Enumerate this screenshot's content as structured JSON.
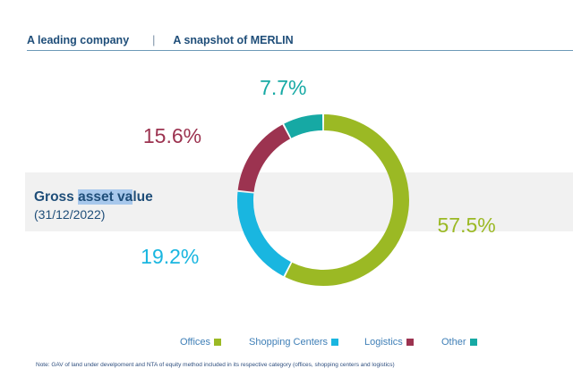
{
  "header": {
    "left": "A leading company",
    "separator": "|",
    "right": "A snapshot of MERLIN"
  },
  "gav": {
    "title_pre": "Gross ",
    "title_highlight": "asset va",
    "title_post": "lue",
    "date": "(31/12/2022)"
  },
  "chart_data": {
    "type": "pie",
    "variant": "donut",
    "slices": [
      {
        "label": "Offices",
        "value": 57.5,
        "display": "57.5%",
        "color": "#9bb924"
      },
      {
        "label": "Shopping Centers",
        "value": 19.2,
        "display": "19.2%",
        "color": "#19b6e0"
      },
      {
        "label": "Logistics",
        "value": 15.6,
        "display": "15.6%",
        "color": "#9c3350"
      },
      {
        "label": "Other",
        "value": 7.7,
        "display": "7.7%",
        "color": "#16a9a4"
      }
    ],
    "legend_position": "bottom"
  },
  "note": "Note: GAV of land under develpoment and NTA of equity method included in its respective category (offices, shopping centers and logistics)"
}
